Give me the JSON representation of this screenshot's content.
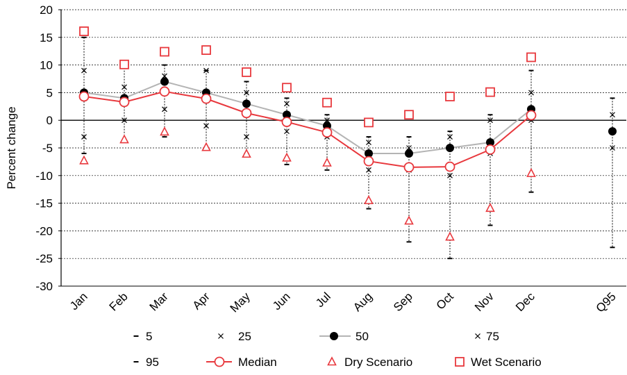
{
  "chart_data": {
    "type": "line",
    "ylabel": "Percent change",
    "ylim": [
      -30,
      20
    ],
    "yticks": [
      20,
      15,
      10,
      5,
      0,
      -5,
      -10,
      -15,
      -20,
      -25,
      -30
    ],
    "categories": [
      "Jan",
      "Feb",
      "Mar",
      "Apr",
      "May",
      "Jun",
      "Jul",
      "Aug",
      "Sep",
      "Oct",
      "Nov",
      "Dec",
      "Q95"
    ],
    "grid": "horizontal dashed",
    "legend_position": "bottom",
    "series": [
      {
        "key": "p5",
        "name": "5",
        "marker": "dash",
        "values": [
          -6,
          -3.5,
          -3,
          -5,
          -6,
          -8,
          -9,
          -16,
          -22,
          -25,
          -19,
          -13,
          -23
        ]
      },
      {
        "key": "p25",
        "name": "25",
        "marker": "x",
        "values": [
          -3,
          0,
          2,
          -1,
          -3,
          -2,
          -3,
          -9,
          -9,
          -10,
          -6,
          0,
          -5
        ]
      },
      {
        "key": "p50",
        "name": "50",
        "marker": "dot",
        "color": "#b4b4b4",
        "values": [
          5,
          4,
          7,
          5,
          3,
          1,
          -1,
          -6,
          -6,
          -5,
          -4,
          2,
          -2
        ]
      },
      {
        "key": "p75",
        "name": "75",
        "marker": "x",
        "values": [
          9,
          6,
          8,
          9,
          5,
          3,
          0,
          -4,
          -5,
          -3,
          0,
          5,
          1
        ]
      },
      {
        "key": "p95",
        "name": "95",
        "marker": "dash",
        "values": [
          15,
          10,
          10,
          9,
          7,
          4,
          1,
          -3,
          -3,
          -2,
          1,
          9,
          4
        ]
      },
      {
        "key": "median",
        "name": "Median",
        "marker": "circle",
        "color": "#e8383d",
        "values": [
          4.3,
          3.3,
          5.2,
          3.9,
          1.3,
          -0.3,
          -2.2,
          -7.4,
          -8.5,
          -8.4,
          -5.3,
          0.9,
          null
        ]
      },
      {
        "key": "dry",
        "name": "Dry Scenario",
        "marker": "triangle",
        "color": "#e8383d",
        "values": [
          -7.3,
          -3.5,
          -2.1,
          -4.9,
          -6.1,
          -6.8,
          -7.7,
          -14.5,
          -18.2,
          -21.1,
          -15.9,
          -9.6,
          null
        ]
      },
      {
        "key": "wet",
        "name": "Wet Scenario",
        "marker": "square",
        "color": "#e8383d",
        "values": [
          16.1,
          10.1,
          12.4,
          12.7,
          8.7,
          5.9,
          3.2,
          -0.4,
          1.0,
          4.3,
          5.1,
          11.4,
          null
        ]
      }
    ]
  },
  "legend": [
    {
      "label": "5"
    },
    {
      "label": "25"
    },
    {
      "label": "50"
    },
    {
      "label": "75"
    },
    {
      "label": "95"
    },
    {
      "label": "Median"
    },
    {
      "label": "Dry Scenario"
    },
    {
      "label": "Wet Scenario"
    }
  ]
}
